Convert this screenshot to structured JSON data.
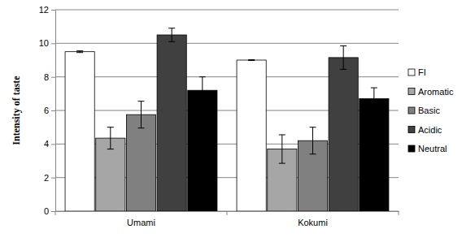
{
  "chart_data": {
    "type": "bar",
    "y_label": "Intensity of taste",
    "categories": [
      "Umami",
      "Kokumi"
    ],
    "series": [
      {
        "name": "FI",
        "color": "#ffffff",
        "values": [
          9.5,
          9.0
        ],
        "errors": [
          0.05,
          0.02
        ]
      },
      {
        "name": "Aromatic",
        "color": "#a6a6a6",
        "values": [
          4.35,
          3.7
        ],
        "errors": [
          0.65,
          0.85
        ]
      },
      {
        "name": "Basic",
        "color": "#808080",
        "values": [
          5.75,
          4.2
        ],
        "errors": [
          0.8,
          0.8
        ]
      },
      {
        "name": "Acidic",
        "color": "#404040",
        "values": [
          10.5,
          9.15
        ],
        "errors": [
          0.4,
          0.7
        ]
      },
      {
        "name": "Neutral",
        "color": "#000000",
        "values": [
          7.2,
          6.7
        ],
        "errors": [
          0.8,
          0.65
        ]
      }
    ],
    "ylim": [
      0,
      12
    ],
    "yticks": [
      0,
      2,
      4,
      6,
      8,
      10,
      12
    ],
    "grid": true,
    "legend": "right"
  }
}
